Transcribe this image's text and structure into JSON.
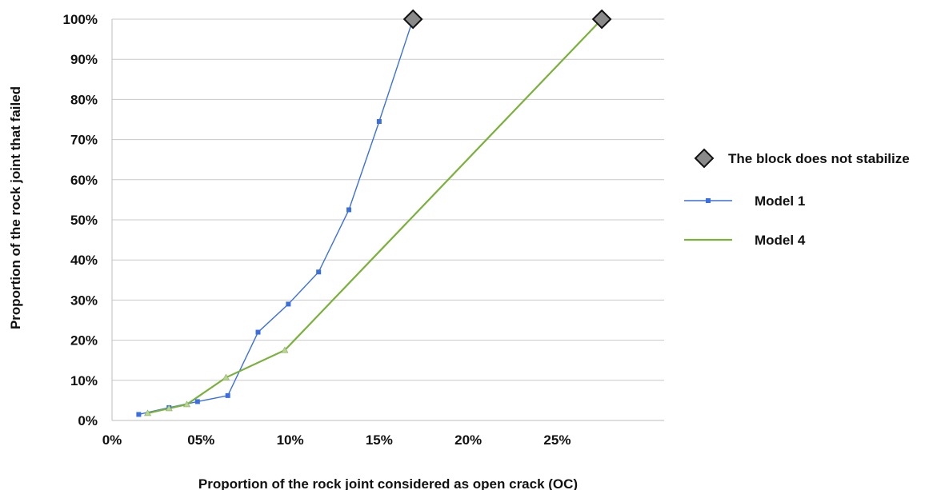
{
  "chart_data": {
    "type": "line",
    "title": "",
    "xlabel": "Proportion of the rock joint considered as open crack (OC)",
    "ylabel": "Proportion of the rock joint that failed",
    "xlim": [
      0,
      31
    ],
    "ylim": [
      0,
      100
    ],
    "x_ticks": [
      0,
      5,
      10,
      15,
      20,
      25
    ],
    "x_tick_labels": [
      "0%",
      "05%",
      "10%",
      "15%",
      "20%",
      "25%"
    ],
    "y_ticks": [
      0,
      10,
      20,
      30,
      40,
      50,
      60,
      70,
      80,
      90,
      100
    ],
    "y_tick_labels": [
      "0%",
      "10%",
      "20%",
      "30%",
      "40%",
      "50%",
      "60%",
      "70%",
      "80%",
      "90%",
      "100%"
    ],
    "grid": "horizontal",
    "legend_position": "right",
    "series": [
      {
        "name": "Model 1",
        "color": "#3b6fe0",
        "marker": "square",
        "x": [
          1.5,
          3.2,
          4.8,
          6.5,
          8.2,
          9.9,
          11.6,
          13.3,
          15.0,
          16.9
        ],
        "y": [
          1.5,
          3.2,
          4.7,
          6.2,
          22,
          29,
          37,
          52.5,
          74.5,
          100
        ]
      },
      {
        "name": "Model 4",
        "color": "#7ab13b",
        "marker": "triangle",
        "x": [
          2.0,
          3.2,
          4.2,
          6.4,
          9.7,
          27.5
        ],
        "y": [
          1.8,
          3.0,
          4.0,
          10.7,
          17.5,
          100
        ]
      }
    ],
    "annotations": [
      {
        "name": "The block does not stabilize",
        "marker": "diamond",
        "color": "#8a8a8a",
        "points": [
          [
            16.9,
            100
          ],
          [
            27.5,
            100
          ]
        ]
      }
    ],
    "legend": [
      {
        "label": "The block does not stabilize",
        "marker": "diamond"
      },
      {
        "label": "Model 1",
        "marker": "square-line"
      },
      {
        "label": "Model 4",
        "marker": "line"
      }
    ]
  }
}
